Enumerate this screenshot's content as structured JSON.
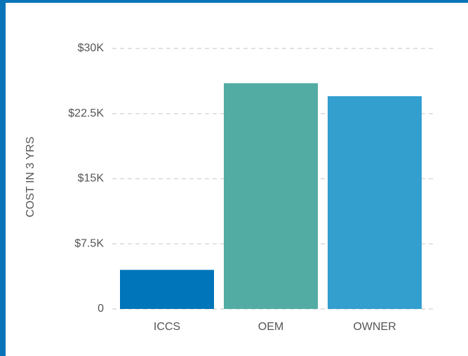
{
  "chart_data": {
    "type": "bar",
    "y_label": "COST IN 3 YRS",
    "categories": [
      "ICCS",
      "OEM",
      "OWNER"
    ],
    "values": [
      4500,
      26000,
      24500
    ],
    "colors": [
      "#0075b9",
      "#52aca3",
      "#339fcf"
    ],
    "ylim": [
      0,
      30000
    ],
    "yticks": [
      0,
      {
        "value": 7500,
        "label": "$7.5K"
      },
      {
        "value": 15000,
        "label": "$15K"
      },
      {
        "value": 22500,
        "label": "$22.5K"
      },
      {
        "value": 30000,
        "label": "$30K"
      }
    ],
    "grid": true
  }
}
